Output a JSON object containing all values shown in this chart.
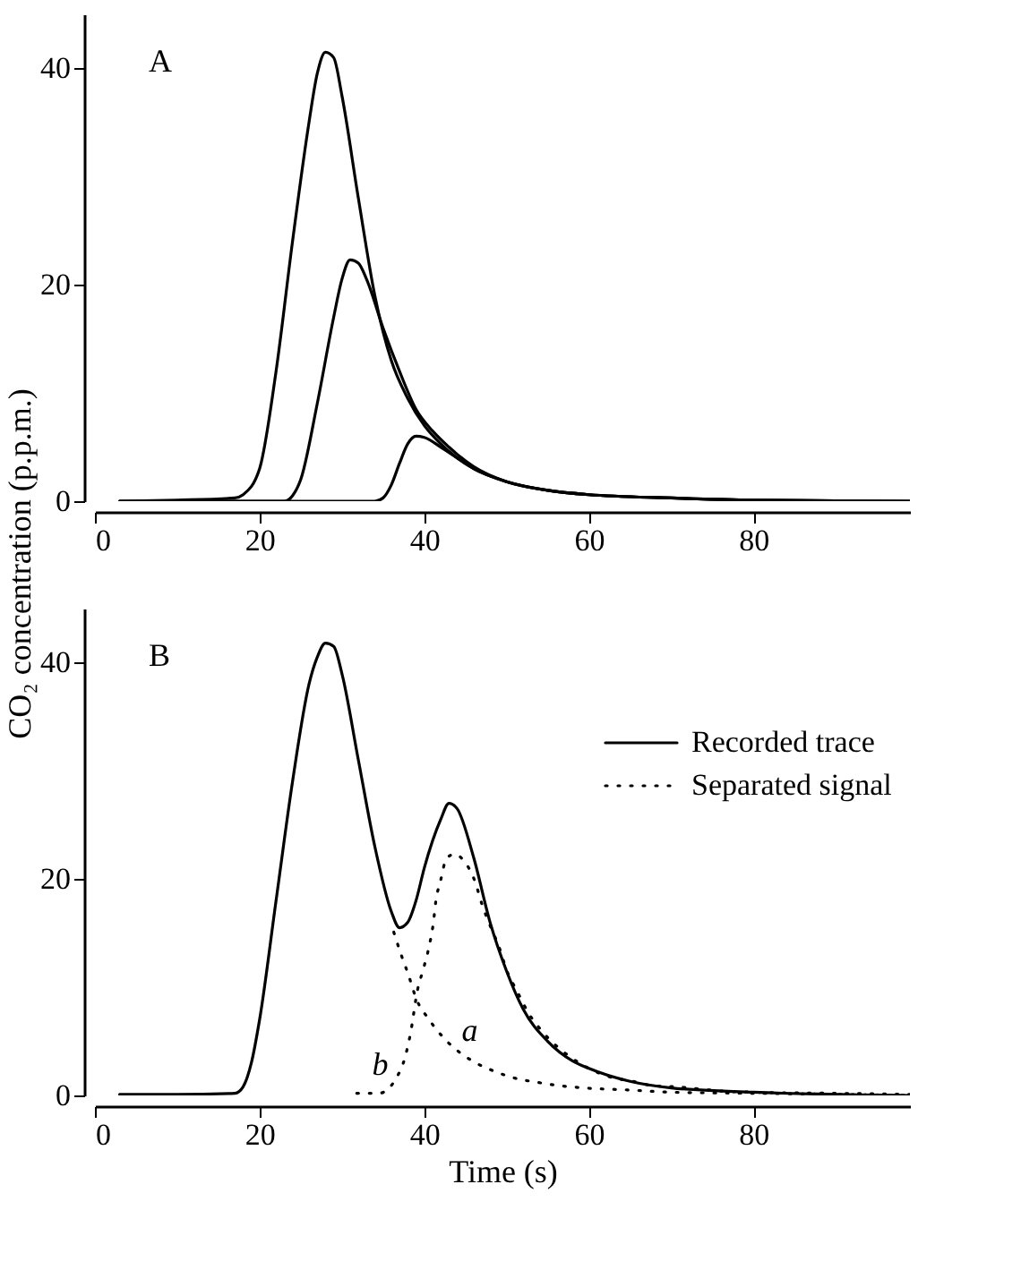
{
  "chart_data": [
    {
      "type": "line",
      "ylabel": "CO₂ concentration   (p.p.m.)",
      "xlim": [
        0,
        99
      ],
      "ylim": [
        0,
        45
      ],
      "xticks": [
        0,
        20,
        40,
        60,
        80
      ],
      "yticks": [
        0,
        20,
        40
      ],
      "legend": false,
      "grid": false,
      "annotations": [
        "A"
      ],
      "series": [
        {
          "color": "#000000",
          "line_style": "solid",
          "x": [
            3,
            10,
            17,
            18,
            20,
            22,
            24,
            26,
            27,
            28,
            29,
            30,
            32,
            34,
            36,
            38,
            40,
            42,
            44,
            46,
            50,
            55,
            60,
            70,
            80,
            99
          ],
          "values": [
            0,
            0.1,
            0.3,
            0.6,
            3,
            12,
            24,
            35,
            39.5,
            41.5,
            41,
            37.5,
            28,
            19,
            13,
            9.5,
            7,
            5.3,
            4,
            3,
            1.8,
            1,
            0.6,
            0.3,
            0.1,
            0
          ]
        },
        {
          "color": "#000000",
          "line_style": "solid",
          "x": [
            3,
            15,
            23,
            24,
            25,
            27,
            29,
            30,
            31,
            32,
            33,
            35,
            37,
            39,
            41,
            43,
            46,
            50,
            55,
            60,
            70,
            80,
            99
          ],
          "values": [
            0,
            0,
            0,
            0.5,
            2,
            9,
            17,
            20.5,
            22.3,
            22,
            20.5,
            16,
            12,
            8.5,
            6.5,
            5,
            3.2,
            1.8,
            1,
            0.6,
            0.3,
            0.1,
            0
          ]
        },
        {
          "color": "#000000",
          "line_style": "solid",
          "x": [
            3,
            20,
            34,
            35,
            36,
            37,
            38,
            39,
            40,
            42,
            44,
            46,
            50,
            55,
            60,
            70,
            80,
            99
          ],
          "values": [
            0,
            0,
            0,
            0.3,
            1.5,
            3.5,
            5.3,
            6,
            5.9,
            5,
            4,
            3,
            1.8,
            1,
            0.6,
            0.3,
            0.1,
            0
          ]
        }
      ]
    },
    {
      "type": "line",
      "xlabel": "Time (s)",
      "xlim": [
        0,
        99
      ],
      "ylim": [
        0,
        45
      ],
      "xticks": [
        0,
        20,
        40,
        60,
        80
      ],
      "yticks": [
        0,
        20,
        40
      ],
      "legend": "top right",
      "grid": false,
      "annotations": [
        "B",
        "a",
        "b"
      ],
      "series": [
        {
          "name": "Recorded trace",
          "color": "#000000",
          "line_style": "solid",
          "x": [
            3,
            10,
            17,
            18,
            19,
            20,
            22,
            24,
            26,
            27,
            28,
            29,
            30,
            32,
            34,
            36,
            37,
            38,
            39,
            40,
            42,
            43,
            44,
            46,
            48,
            50,
            52,
            55,
            58,
            60,
            65,
            70,
            80,
            99
          ],
          "values": [
            0.1,
            0.1,
            0.2,
            0.8,
            3,
            7,
            18,
            29,
            38,
            40.5,
            41.8,
            41.5,
            39,
            31,
            23,
            17,
            15.5,
            16,
            18,
            21,
            25.5,
            27,
            26.5,
            22,
            16,
            11.5,
            8,
            5,
            3.2,
            2.5,
            1.3,
            0.7,
            0.3,
            0
          ]
        },
        {
          "name": "Separated signal",
          "color": "#000000",
          "line_style": "dotted",
          "x": [
            31.8,
            34.5,
            36.6,
            37.7,
            38.3,
            39.2,
            39.9,
            40.6,
            41.1,
            41.4,
            42,
            42.7,
            43.7,
            44.8,
            46.2,
            47,
            48,
            49.1,
            50,
            51.3,
            52.6,
            54.7,
            57.3,
            60,
            62.6,
            65.4,
            67.8,
            70.6,
            73.4,
            76.2,
            80,
            90,
            99
          ],
          "values": [
            0.2,
            0.2,
            1.6,
            3.6,
            5.6,
            9.8,
            11.7,
            13.8,
            15.9,
            17.9,
            19.9,
            21.9,
            22.3,
            21.7,
            19.7,
            17.7,
            15.7,
            13.7,
            11.6,
            9.6,
            7.7,
            5.6,
            3.8,
            2.5,
            1.7,
            1.3,
            0.9,
            0.8,
            0.6,
            0.4,
            0.3,
            0.2,
            0.1
          ]
        },
        {
          "color": "#000000",
          "line_style": "dotted",
          "x": [
            36.3,
            37.2,
            38.1,
            39,
            40.6,
            42.9,
            45.6,
            48.3,
            51,
            53.8,
            56.5,
            59.3,
            65,
            70,
            80,
            90,
            99
          ],
          "values": [
            15.1,
            13,
            11.1,
            9,
            7,
            4.9,
            3.3,
            2.3,
            1.6,
            1.2,
            0.9,
            0.7,
            0.5,
            0.3,
            0.2,
            0.1,
            0
          ]
        }
      ]
    }
  ]
}
